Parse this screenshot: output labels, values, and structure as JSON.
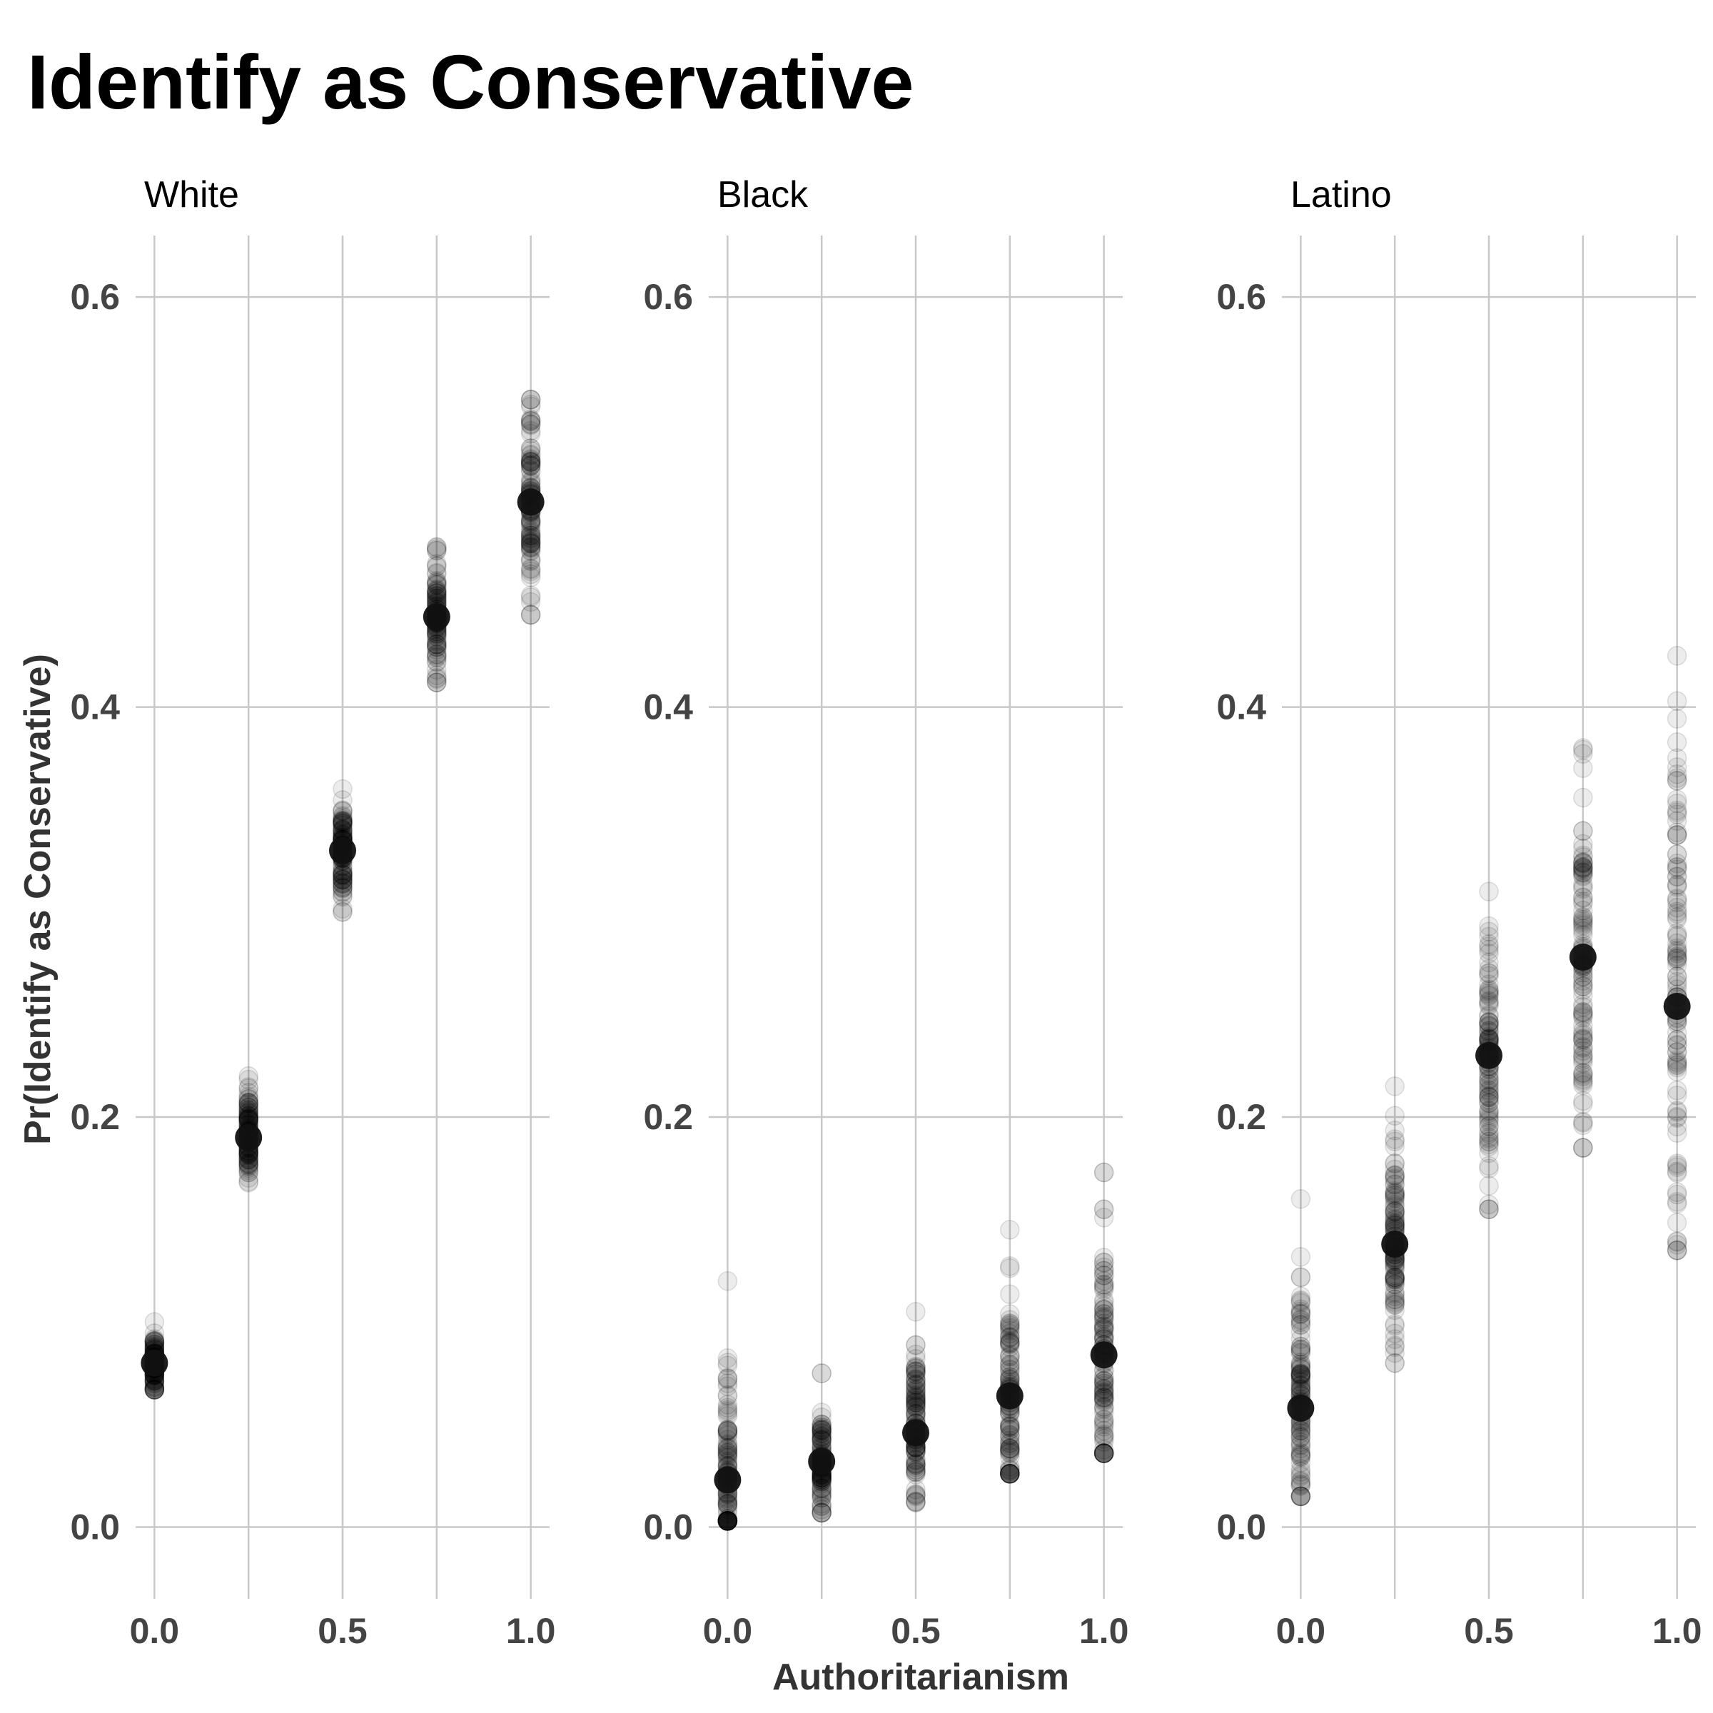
{
  "chart_data": {
    "type": "scatter",
    "title": "Identify as Conservative",
    "xlabel": "Authoritarianism",
    "ylabel": "Pr(Identify as Conservative)",
    "xlim": [
      -0.05,
      1.05
    ],
    "ylim": [
      -0.035,
      0.63
    ],
    "x_ticks": [
      0.0,
      0.5,
      1.0
    ],
    "x_tick_labels": [
      "0.0",
      "0.5",
      "1.0"
    ],
    "y_ticks": [
      0.0,
      0.2,
      0.4,
      0.6
    ],
    "y_tick_labels": [
      "0.0",
      "0.2",
      "0.4",
      "0.6"
    ],
    "x_minor_grid": [
      0.25,
      0.75
    ],
    "y_minor_grid": [
      0.1,
      0.3,
      0.5
    ],
    "grid": true,
    "legend": "none",
    "point_color": "#000000",
    "facets": [
      {
        "name": "White",
        "points": [
          {
            "x": 0.0,
            "mean": 0.08,
            "min": 0.067,
            "max": 0.1
          },
          {
            "x": 0.25,
            "mean": 0.19,
            "min": 0.168,
            "max": 0.22
          },
          {
            "x": 0.5,
            "mean": 0.33,
            "min": 0.3,
            "max": 0.36
          },
          {
            "x": 0.75,
            "mean": 0.444,
            "min": 0.412,
            "max": 0.478
          },
          {
            "x": 1.0,
            "mean": 0.5,
            "min": 0.445,
            "max": 0.55
          }
        ]
      },
      {
        "name": "Black",
        "points": [
          {
            "x": 0.0,
            "mean": 0.023,
            "min": 0.003,
            "max": 0.12
          },
          {
            "x": 0.25,
            "mean": 0.032,
            "min": 0.007,
            "max": 0.075
          },
          {
            "x": 0.5,
            "mean": 0.046,
            "min": 0.012,
            "max": 0.105
          },
          {
            "x": 0.75,
            "mean": 0.064,
            "min": 0.026,
            "max": 0.145
          },
          {
            "x": 1.0,
            "mean": 0.084,
            "min": 0.036,
            "max": 0.173
          }
        ]
      },
      {
        "name": "Latino",
        "points": [
          {
            "x": 0.0,
            "mean": 0.058,
            "min": 0.015,
            "max": 0.16
          },
          {
            "x": 0.25,
            "mean": 0.138,
            "min": 0.08,
            "max": 0.215
          },
          {
            "x": 0.5,
            "mean": 0.23,
            "min": 0.155,
            "max": 0.31
          },
          {
            "x": 0.75,
            "mean": 0.278,
            "min": 0.185,
            "max": 0.38
          },
          {
            "x": 1.0,
            "mean": 0.254,
            "min": 0.135,
            "max": 0.425
          }
        ]
      }
    ]
  }
}
